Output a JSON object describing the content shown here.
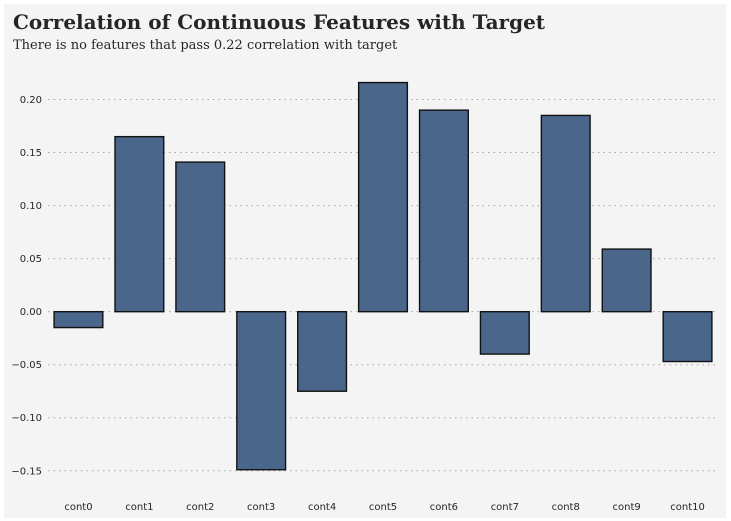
{
  "chart_data": {
    "type": "bar",
    "title": "Correlation of Continuous Features with Target",
    "subtitle": "There is no features that pass 0.22 correlation with target",
    "xlabel": "",
    "ylabel": "",
    "categories": [
      "cont0",
      "cont1",
      "cont2",
      "cont3",
      "cont4",
      "cont5",
      "cont6",
      "cont7",
      "cont8",
      "cont9",
      "cont10"
    ],
    "values": [
      -0.015,
      0.165,
      0.141,
      -0.149,
      -0.075,
      0.216,
      0.19,
      -0.04,
      0.185,
      0.059,
      -0.047
    ],
    "ylim": [
      -0.17,
      0.225
    ],
    "yticks": [
      -0.15,
      -0.1,
      -0.05,
      0.0,
      0.05,
      0.1,
      0.15,
      0.2
    ],
    "ytick_labels": [
      "−0.15",
      "−0.10",
      "−0.05",
      "0.00",
      "0.05",
      "0.10",
      "0.15",
      "0.20"
    ],
    "grid": "horizontal-dotted",
    "legend": "none",
    "colors": {
      "bar": "#4a678b",
      "bar_edge": "#111111",
      "background": "#f4f4f4",
      "grid": "#a6a6a6"
    }
  }
}
